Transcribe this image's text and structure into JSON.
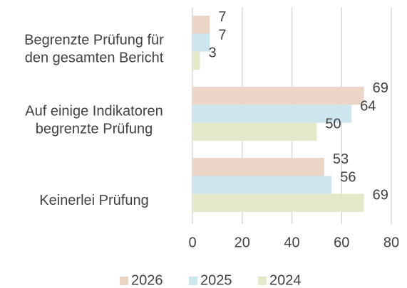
{
  "chart_data": {
    "type": "hbar",
    "categories": [
      [
        "Begrenzte Prüfung für",
        "den gesamten Bericht"
      ],
      [
        "Auf einige Indikatoren",
        "begrenzte Prüfung"
      ],
      [
        "Keinerlei Prüfung"
      ]
    ],
    "series": [
      {
        "name": "2026",
        "color": "#ead5c7",
        "values": [
          7,
          69,
          53
        ]
      },
      {
        "name": "2025",
        "color": "#cde6ee",
        "values": [
          7,
          64,
          56
        ]
      },
      {
        "name": "2024",
        "color": "#e4e8c8",
        "values": [
          3,
          50,
          69
        ]
      }
    ],
    "xlim": [
      0,
      80
    ],
    "xticks": [
      0,
      20,
      40,
      60,
      80
    ],
    "grid": true
  }
}
